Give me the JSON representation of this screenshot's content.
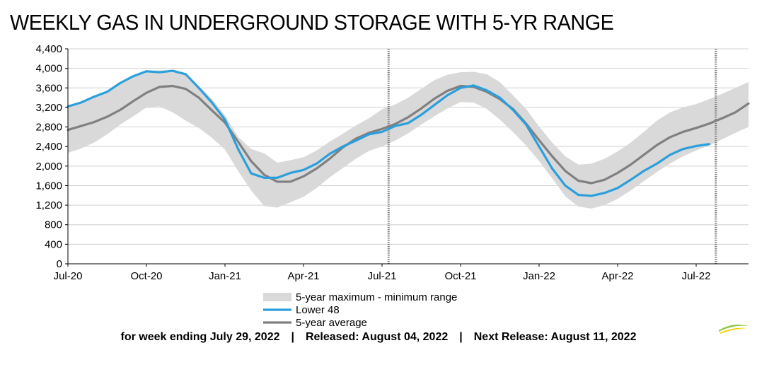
{
  "title": "WEEKLY GAS IN UNDERGROUND STORAGE WITH 5-YR RANGE",
  "footer": {
    "week_ending": "for week ending July 29, 2022",
    "released": "Released: August 04, 2022",
    "next_release": "Next Release: August 11, 2022",
    "separator": "|"
  },
  "colors": {
    "lower48": "#2b9fdc",
    "average": "#808080",
    "range": "#d9d9d9",
    "dotted": "#7f7f7f",
    "swoosh_green": "#8cc63f",
    "swoosh_yellow": "#f5d311"
  },
  "chart_data": {
    "type": "line",
    "title": "WEEKLY GAS IN UNDERGROUND STORAGE WITH 5-YR RANGE",
    "xlabel": "",
    "ylabel": "",
    "x_unit": "months since Jul-20",
    "xlim": [
      0,
      26
    ],
    "ylim": [
      0,
      4400
    ],
    "yticks": [
      0,
      400,
      800,
      1200,
      1600,
      2000,
      2400,
      2800,
      3200,
      3600,
      4000,
      4400
    ],
    "ytick_labels": [
      "0",
      "400",
      "800",
      "1,200",
      "1,600",
      "2,000",
      "2,400",
      "2,800",
      "3,200",
      "3,600",
      "4,000",
      "4,400"
    ],
    "xticks": [
      {
        "x": 0,
        "label": "Jul-20"
      },
      {
        "x": 3,
        "label": "Oct-20"
      },
      {
        "x": 6,
        "label": "Jan-21"
      },
      {
        "x": 9,
        "label": "Apr-21"
      },
      {
        "x": 12,
        "label": "Jul-21"
      },
      {
        "x": 15,
        "label": "Oct-21"
      },
      {
        "x": 18,
        "label": "Jan-22"
      },
      {
        "x": 21,
        "label": "Apr-22"
      },
      {
        "x": 24,
        "label": "Jul-22"
      }
    ],
    "vertical_markers": [
      12.25,
      24.75
    ],
    "legend": {
      "placement": "bottom-center",
      "entries": [
        {
          "key": "range",
          "label": "5-year maximum - minimum range"
        },
        {
          "key": "lower48",
          "label": "Lower 48"
        },
        {
          "key": "average",
          "label": "5-year average"
        }
      ]
    },
    "series": [
      {
        "key": "lower48",
        "name": "Lower 48",
        "x": [
          0,
          0.5,
          1,
          1.5,
          2,
          2.5,
          3,
          3.5,
          4,
          4.5,
          5,
          5.5,
          6,
          6.5,
          7,
          7.5,
          8,
          8.5,
          9,
          9.5,
          10,
          10.5,
          11,
          11.5,
          12,
          12.5,
          13,
          13.5,
          14,
          14.5,
          15,
          15.5,
          16,
          16.5,
          17,
          17.5,
          18,
          18.5,
          19,
          19.5,
          20,
          20.5,
          21,
          21.5,
          22,
          22.5,
          23,
          23.5,
          24,
          24.5
        ],
        "values": [
          3220,
          3300,
          3420,
          3520,
          3700,
          3840,
          3940,
          3920,
          3950,
          3880,
          3600,
          3300,
          2950,
          2350,
          1850,
          1760,
          1760,
          1860,
          1920,
          2050,
          2250,
          2400,
          2520,
          2650,
          2700,
          2820,
          2880,
          3050,
          3250,
          3450,
          3600,
          3650,
          3550,
          3400,
          3150,
          2850,
          2400,
          1950,
          1600,
          1410,
          1390,
          1450,
          1550,
          1720,
          1900,
          2050,
          2230,
          2350,
          2410,
          2450
        ]
      },
      {
        "key": "average",
        "name": "5-year average",
        "x": [
          0,
          0.5,
          1,
          1.5,
          2,
          2.5,
          3,
          3.5,
          4,
          4.5,
          5,
          5.5,
          6,
          6.5,
          7,
          7.5,
          8,
          8.5,
          9,
          9.5,
          10,
          10.5,
          11,
          11.5,
          12,
          12.5,
          13,
          13.5,
          14,
          14.5,
          15,
          15.5,
          16,
          16.5,
          17,
          17.5,
          18,
          18.5,
          19,
          19.5,
          20,
          20.5,
          21,
          21.5,
          22,
          22.5,
          23,
          23.5,
          24,
          24.5,
          25,
          25.5,
          26
        ],
        "values": [
          2740,
          2820,
          2900,
          3010,
          3150,
          3330,
          3500,
          3620,
          3640,
          3580,
          3400,
          3140,
          2890,
          2500,
          2100,
          1820,
          1680,
          1680,
          1790,
          1950,
          2150,
          2380,
          2560,
          2680,
          2760,
          2860,
          3000,
          3180,
          3380,
          3540,
          3640,
          3620,
          3520,
          3370,
          3170,
          2870,
          2530,
          2200,
          1900,
          1700,
          1650,
          1720,
          1860,
          2030,
          2230,
          2430,
          2590,
          2700,
          2780,
          2870,
          2980,
          3100,
          3280
        ]
      }
    ],
    "range_band": {
      "key": "range",
      "name": "5-year maximum - minimum range",
      "x": [
        0,
        0.5,
        1,
        1.5,
        2,
        2.5,
        3,
        3.5,
        4,
        4.5,
        5,
        5.5,
        6,
        6.5,
        7,
        7.5,
        8,
        8.5,
        9,
        9.5,
        10,
        10.5,
        11,
        11.5,
        12,
        12.5,
        13,
        13.5,
        14,
        14.5,
        15,
        15.5,
        16,
        16.5,
        17,
        17.5,
        18,
        18.5,
        19,
        19.5,
        20,
        20.5,
        21,
        21.5,
        22,
        22.5,
        23,
        23.5,
        24,
        24.5,
        25,
        25.5,
        26
      ],
      "upper": [
        3230,
        3300,
        3420,
        3520,
        3710,
        3850,
        3950,
        3960,
        3960,
        3900,
        3640,
        3380,
        3040,
        2600,
        2350,
        2260,
        2070,
        2120,
        2180,
        2320,
        2500,
        2660,
        2830,
        2980,
        3160,
        3260,
        3400,
        3580,
        3760,
        3870,
        3920,
        3930,
        3880,
        3720,
        3450,
        3170,
        2810,
        2480,
        2200,
        2030,
        2050,
        2150,
        2300,
        2480,
        2700,
        2930,
        3100,
        3200,
        3270,
        3370,
        3480,
        3600,
        3720
      ],
      "lower": [
        2270,
        2360,
        2480,
        2650,
        2850,
        3020,
        3200,
        3220,
        3100,
        2930,
        2780,
        2580,
        2340,
        1900,
        1500,
        1180,
        1150,
        1260,
        1370,
        1550,
        1770,
        1960,
        2150,
        2310,
        2400,
        2520,
        2670,
        2850,
        3020,
        3180,
        3310,
        3300,
        3170,
        2950,
        2700,
        2420,
        2100,
        1750,
        1380,
        1170,
        1130,
        1200,
        1330,
        1500,
        1690,
        1880,
        2050,
        2200,
        2320,
        2420,
        2550,
        2680,
        2800
      ]
    }
  }
}
